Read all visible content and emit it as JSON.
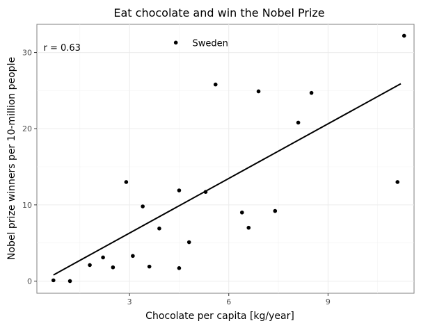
{
  "chart_data": {
    "type": "scatter",
    "title": "Eat chocolate and win the Nobel Prize",
    "xlabel": "Chocolate per capita [kg/year]",
    "ylabel": "Nobel prize winners per 10-million people",
    "xlim": [
      0.2,
      11.6
    ],
    "ylim": [
      -1.6,
      33.7
    ],
    "x_ticks": [
      3,
      6,
      9
    ],
    "y_ticks": [
      0,
      10,
      20,
      30
    ],
    "grid": true,
    "points": [
      {
        "x": 0.7,
        "y": 0.1
      },
      {
        "x": 1.2,
        "y": 0.0
      },
      {
        "x": 1.8,
        "y": 2.1
      },
      {
        "x": 2.2,
        "y": 3.1
      },
      {
        "x": 2.5,
        "y": 1.8
      },
      {
        "x": 2.9,
        "y": 13.0
      },
      {
        "x": 3.1,
        "y": 3.3
      },
      {
        "x": 3.4,
        "y": 9.8
      },
      {
        "x": 3.6,
        "y": 1.9
      },
      {
        "x": 3.9,
        "y": 6.9
      },
      {
        "x": 4.5,
        "y": 1.7
      },
      {
        "x": 4.5,
        "y": 11.9
      },
      {
        "x": 4.8,
        "y": 5.1
      },
      {
        "x": 5.3,
        "y": 11.7
      },
      {
        "x": 5.6,
        "y": 25.8
      },
      {
        "x": 6.4,
        "y": 9.0
      },
      {
        "x": 6.6,
        "y": 7.0
      },
      {
        "x": 6.9,
        "y": 24.9
      },
      {
        "x": 7.4,
        "y": 9.2
      },
      {
        "x": 8.1,
        "y": 20.8
      },
      {
        "x": 8.5,
        "y": 24.7
      },
      {
        "x": 11.1,
        "y": 13.0
      },
      {
        "x": 11.3,
        "y": 32.2
      }
    ],
    "trend_line": {
      "x": [
        0.7,
        11.2
      ],
      "y": [
        0.8,
        25.9
      ]
    },
    "annotations": [
      {
        "text": "r = 0.63",
        "x": 0.4,
        "y": 30.7,
        "marker": false
      },
      {
        "text": "Sweden",
        "x": 4.9,
        "y": 31.3,
        "marker": true,
        "marker_x": 4.4
      }
    ]
  }
}
